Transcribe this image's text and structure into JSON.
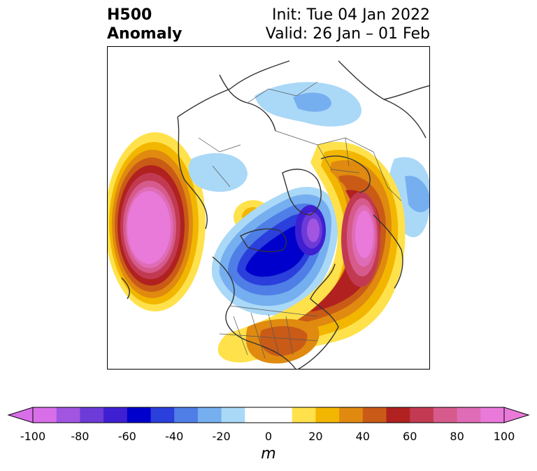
{
  "header": {
    "title_line1": "H500",
    "title_line2": "Anomaly",
    "init_text": "Init: Tue 04 Jan 2022",
    "valid_text": "Valid: 26 Jan – 01 Feb"
  },
  "colorbar": {
    "unit": "m",
    "ticks": [
      "-100",
      "-80",
      "-60",
      "-40",
      "-20",
      "0",
      "20",
      "40",
      "60",
      "80",
      "100"
    ],
    "colors": [
      "#d86fe8",
      "#a155e0",
      "#6c3bd8",
      "#3f1fd2",
      "#0000cc",
      "#2a3fdb",
      "#4e7ee6",
      "#76aff0",
      "#aad8f7",
      "#ffffff",
      "#ffffff",
      "#ffe14b",
      "#f2b600",
      "#e08a10",
      "#c95b17",
      "#b0211f",
      "#c23a52",
      "#d65b8c",
      "#df6cb6",
      "#ea7ad9"
    ]
  },
  "map": {
    "projection": "north-polar-stereographic",
    "features": [
      "coastlines",
      "country-borders",
      "state-borders"
    ]
  }
}
